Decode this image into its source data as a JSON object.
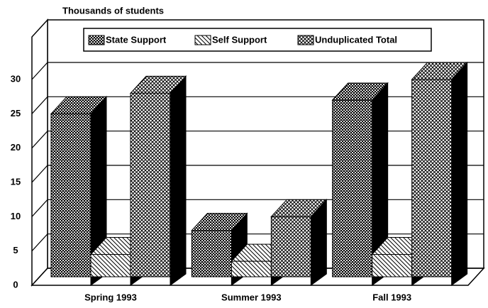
{
  "chart_data": {
    "type": "bar3d",
    "y_axis_label": "Thousands of students",
    "categories": [
      "Spring 1993",
      "Summer 1993",
      "Fall 1993"
    ],
    "series": [
      {
        "name": "State Support",
        "color": "#000000",
        "values": [
          25,
          8,
          27
        ]
      },
      {
        "name": "Self Support",
        "color": "#000000",
        "values": [
          4.5,
          3.5,
          4.5
        ]
      },
      {
        "name": "Unduplicated Total",
        "color": "#000000",
        "values": [
          28,
          10,
          30
        ]
      }
    ],
    "ylim": [
      0,
      30
    ],
    "yticks": [
      0,
      5,
      10,
      15,
      20,
      25,
      30
    ],
    "grid": true
  }
}
